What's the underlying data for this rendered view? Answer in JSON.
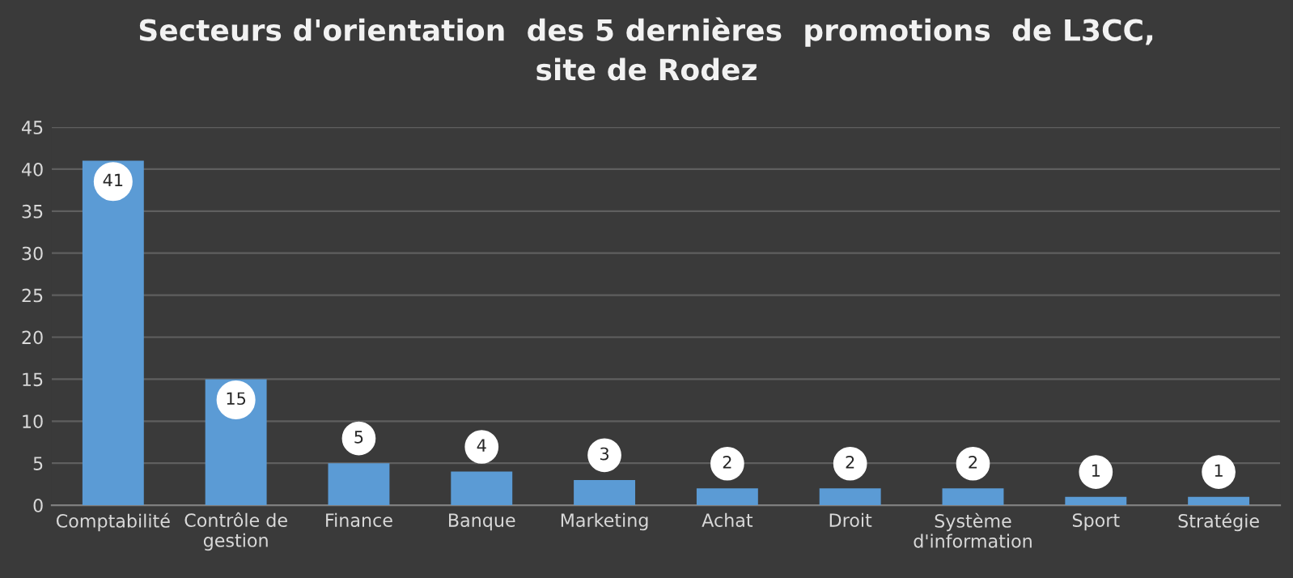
{
  "chart_data": {
    "type": "bar",
    "title": "Secteurs d'orientation  des 5 dernières  promotions  de L3CC,\nsite de Rodez",
    "categories": [
      "Comptabilité",
      "Contrôle de gestion",
      "Finance",
      "Banque",
      "Marketing",
      "Achat",
      "Droit",
      "Système d'information",
      "Sport",
      "Stratégie"
    ],
    "values": [
      41,
      15,
      5,
      4,
      3,
      2,
      2,
      2,
      1,
      1
    ],
    "color": "#5b9bd5",
    "ylim": [
      0,
      45
    ],
    "yticks": [
      0,
      5,
      10,
      15,
      20,
      25,
      30,
      35,
      40,
      45
    ],
    "grid": "y",
    "data_labels": true,
    "legend": false
  }
}
